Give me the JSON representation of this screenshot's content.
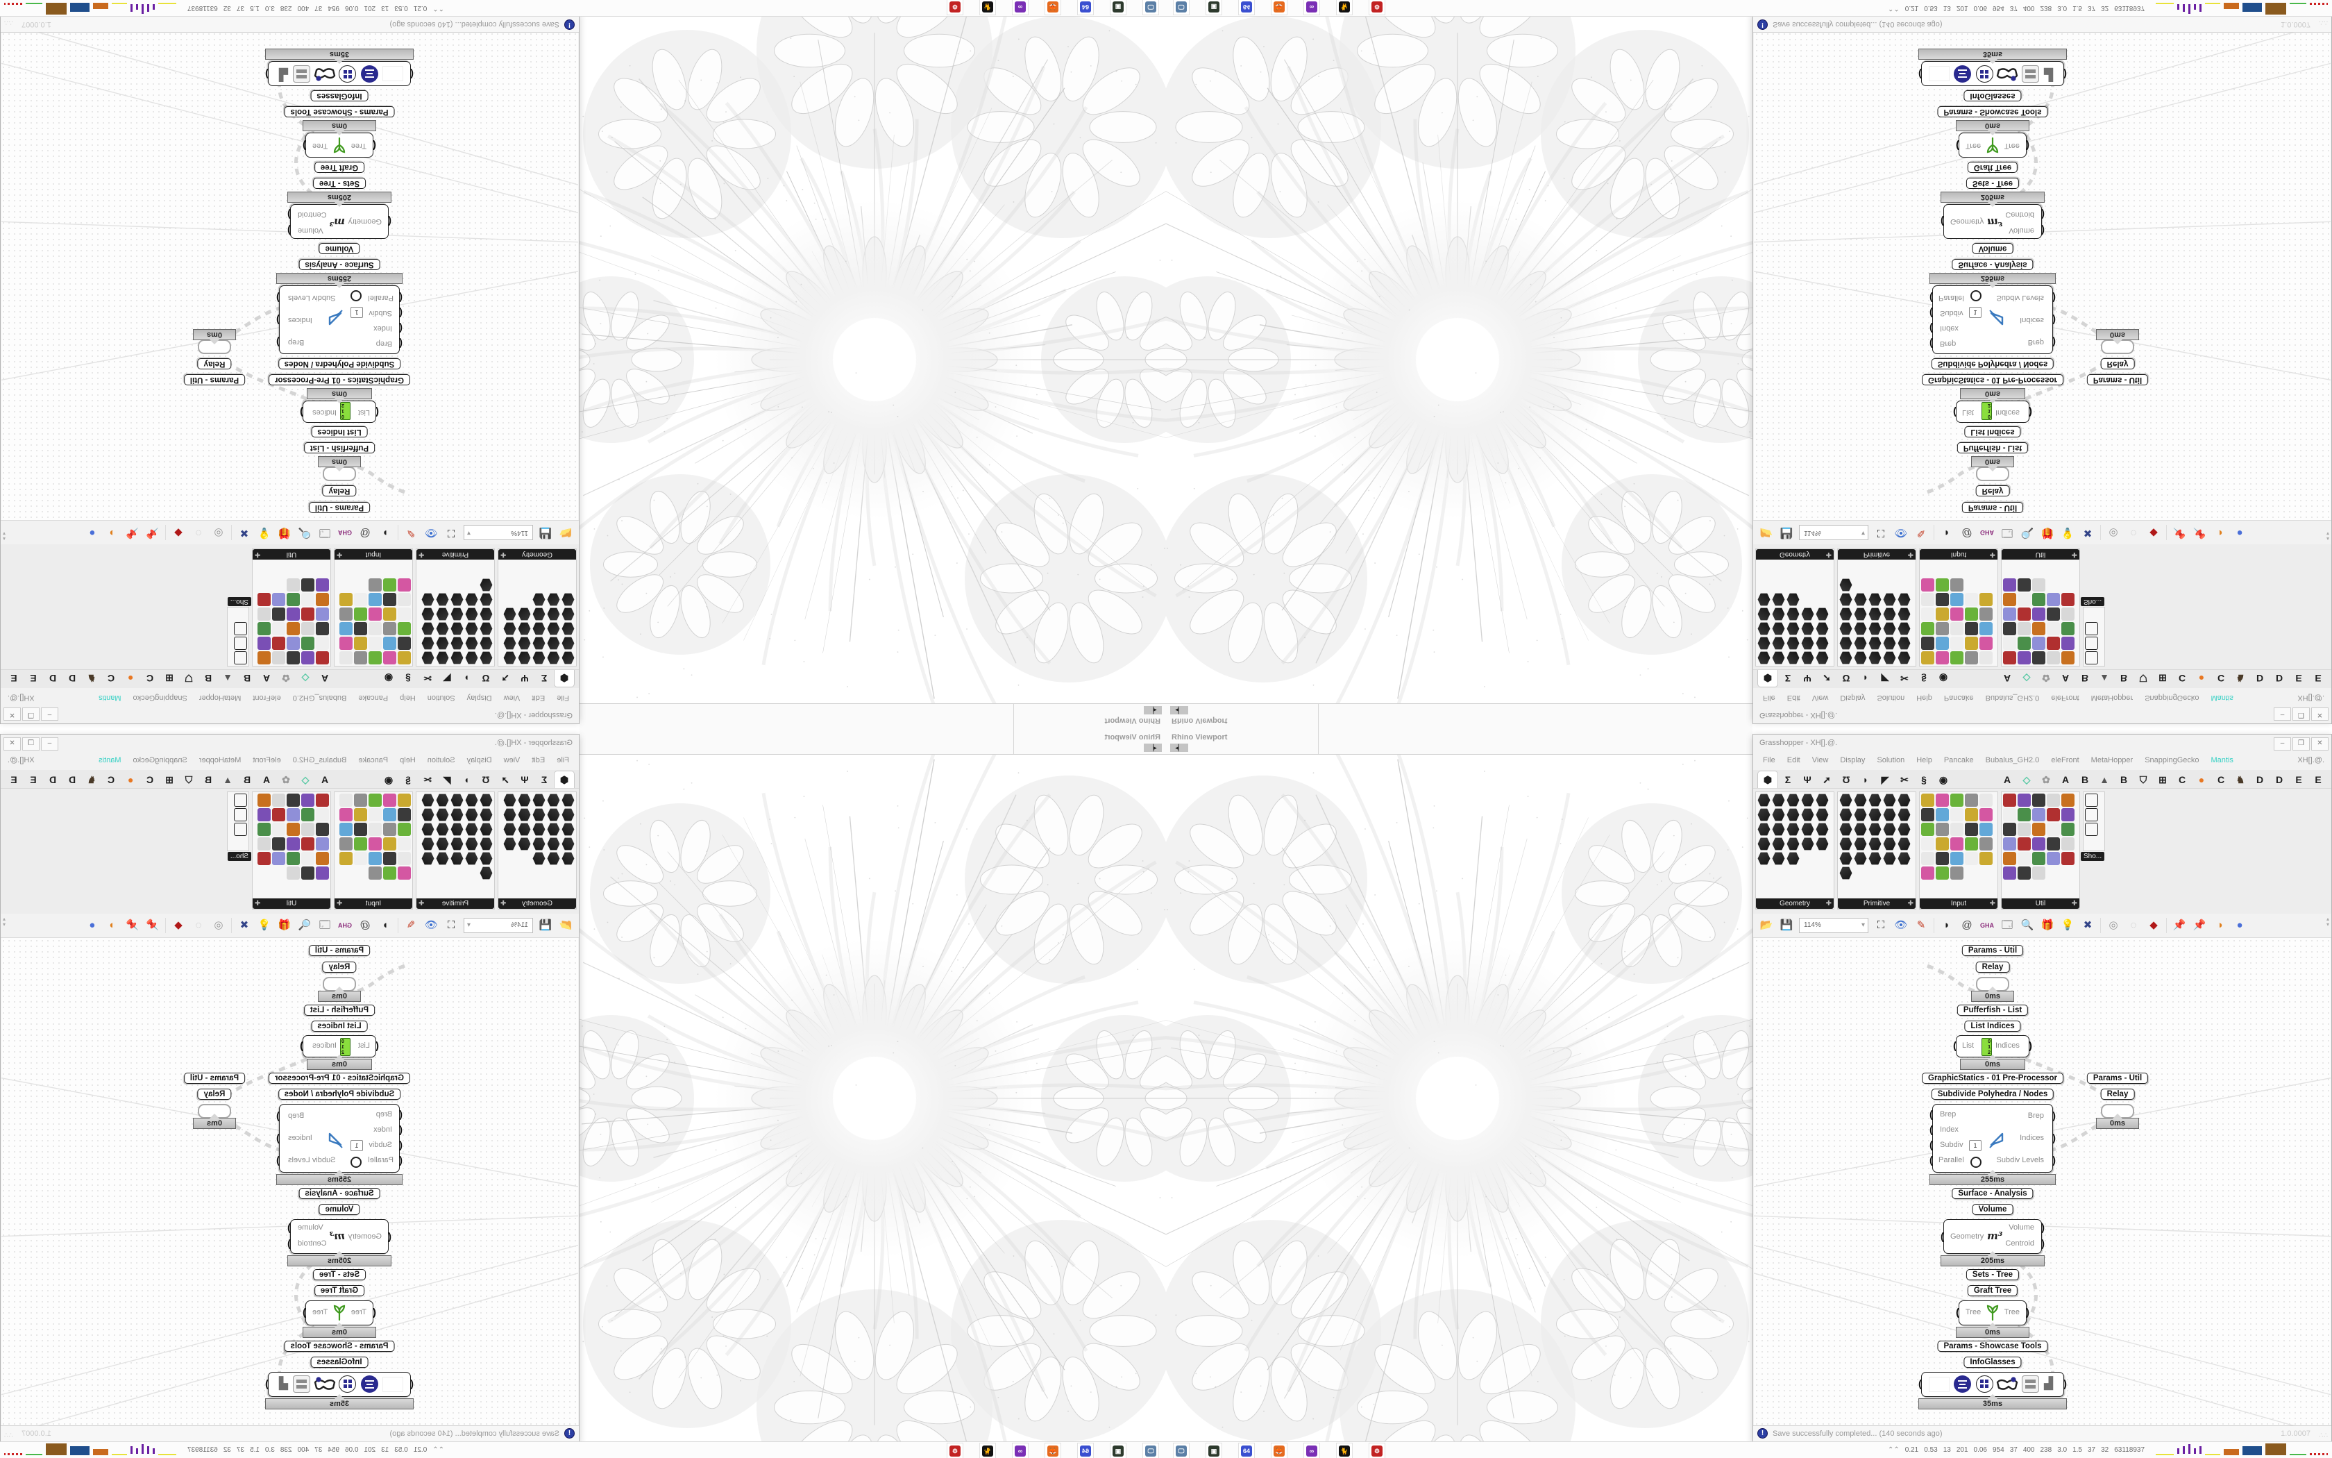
{
  "viewport": {
    "tab_label": "Rhino Viewport",
    "nav_glyph": "◂▏"
  },
  "gh_window": {
    "title": "Grasshopper - XH[].@.",
    "window_controls": {
      "minimize": "–",
      "maximize": "❒",
      "close": "✕"
    },
    "menu": [
      "File",
      "Edit",
      "View",
      "Display",
      "Solution",
      "Help",
      "Pancake",
      "Bubalus_GH2.0",
      "eleFront",
      "MetaHopper",
      "SnappingGecko",
      "Mantis"
    ],
    "menu_highlight": "Mantis",
    "menu_highlight_color": "#35d0c4",
    "menu_right": "XH[].@.",
    "tabs": [
      {
        "glyph": "⬢",
        "name": "tab-params",
        "selected": true
      },
      {
        "glyph": "Σ",
        "name": "tab-maths"
      },
      {
        "glyph": "Ψ",
        "name": "tab-sets"
      },
      {
        "glyph": "➚",
        "name": "tab-vector"
      },
      {
        "glyph": "Ʊ",
        "name": "tab-curve"
      },
      {
        "glyph": "◗",
        "name": "tab-surface"
      },
      {
        "glyph": "◤",
        "name": "tab-mesh"
      },
      {
        "glyph": "✂",
        "name": "tab-intersect"
      },
      {
        "glyph": "§",
        "name": "tab-transform"
      },
      {
        "glyph": "◉",
        "name": "tab-display"
      },
      {
        "glyph": "",
        "name": "tab-gap",
        "gap": true
      },
      {
        "glyph": "A",
        "name": "tab-plugin-a1"
      },
      {
        "glyph": "◇",
        "name": "tab-plugin-kite",
        "color": "#59c9a5"
      },
      {
        "glyph": "✿",
        "name": "tab-plugin-flower",
        "color": "#9a9a9a"
      },
      {
        "glyph": "A",
        "name": "tab-plugin-a2"
      },
      {
        "glyph": "B",
        "name": "tab-plugin-b1"
      },
      {
        "glyph": "▲",
        "name": "tab-plugin-mountain",
        "color": "#555"
      },
      {
        "glyph": "B",
        "name": "tab-plugin-b2"
      },
      {
        "glyph": "⛉",
        "name": "tab-plugin-shield"
      },
      {
        "glyph": "⊞",
        "name": "tab-plugin-waffle"
      },
      {
        "glyph": "C",
        "name": "tab-plugin-c1"
      },
      {
        "glyph": "●",
        "name": "tab-plugin-dot",
        "color": "#e87722"
      },
      {
        "glyph": "C",
        "name": "tab-plugin-c2"
      },
      {
        "glyph": "♞",
        "name": "tab-plugin-bird",
        "color": "#4a3a28"
      },
      {
        "glyph": "D",
        "name": "tab-plugin-d1"
      },
      {
        "glyph": "D",
        "name": "tab-plugin-d2"
      },
      {
        "glyph": "E",
        "name": "tab-plugin-e1"
      },
      {
        "glyph": "E",
        "name": "tab-plugin-e2"
      },
      {
        "glyph": "▦",
        "name": "tab-plugin-grid"
      }
    ],
    "palettes": [
      {
        "name": "Geometry",
        "style": "hex",
        "cols": 4,
        "count": 23
      },
      {
        "name": "Primitive",
        "style": "hex",
        "cols": 5,
        "count": 26
      },
      {
        "name": "Input",
        "style": "mixed",
        "cols": 5,
        "count": 28
      },
      {
        "name": "Util",
        "style": "mixed2",
        "cols": 5,
        "count": 28
      },
      {
        "name": "Sho...",
        "style": "narrow",
        "cols": 1,
        "count": 3
      }
    ],
    "toolbar": {
      "zoom_value": "114%",
      "icons": [
        {
          "name": "open-file-icon",
          "glyph": "📂",
          "color": "#6fae3f"
        },
        {
          "name": "save-file-icon",
          "glyph": "💾",
          "color": "#3a5fd0"
        },
        {
          "name": "zoom-extents-icon",
          "glyph": "⛶",
          "color": "#111"
        },
        {
          "name": "preview-eye-icon",
          "glyph": "👁",
          "color": "#3a6fd0"
        },
        {
          "name": "sketch-pen-icon",
          "glyph": "✎",
          "color": "#c23b22"
        },
        {
          "name": "widget-speaker-icon",
          "glyph": "◗",
          "color": "#222"
        },
        {
          "name": "at-sign-icon",
          "glyph": "@",
          "color": "#444"
        },
        {
          "name": "gha-badge-icon",
          "glyph": "GHA",
          "color": "#8a2a7a"
        },
        {
          "name": "window-plant-icon",
          "glyph": "🗔",
          "color": "#444"
        },
        {
          "name": "s-magnifier-icon",
          "glyph": "🔍",
          "color": "#2a4fd0"
        },
        {
          "name": "help-package-icon",
          "glyph": "🎁",
          "color": "#e4568e"
        },
        {
          "name": "lightbulb-icon",
          "glyph": "💡",
          "color": "#8f7ad8"
        },
        {
          "name": "galapagos-icon",
          "glyph": "✖",
          "color": "#334488"
        },
        {
          "name": "gumball-gray-icon",
          "glyph": "◎",
          "color": "#9a9a9a"
        },
        {
          "name": "rings-icon",
          "glyph": "◌",
          "color": "#bbb"
        },
        {
          "name": "gem-red-icon",
          "glyph": "◆",
          "color": "#b01818"
        },
        {
          "name": "pin-teal-icon",
          "glyph": "📌",
          "color": "#2a8f8f"
        },
        {
          "name": "pin-green-icon",
          "glyph": "📌",
          "color": "#52a83a"
        },
        {
          "name": "pin-orange-icon",
          "glyph": "◑",
          "color": "#e0801e"
        },
        {
          "name": "ball-blue-icon",
          "glyph": "●",
          "color": "#4a6fd8"
        }
      ]
    },
    "statusbar": {
      "message": "Save successfully completed... (140 seconds ago)",
      "version": "1.0.0007"
    }
  },
  "canvas": {
    "group1_label": "Params - Util",
    "relay_label": "Relay",
    "relay_timer": "0ms",
    "pufferfish_label": "Pufferfish - List",
    "listindices_label": "List Indices",
    "li_port_in": "List",
    "li_port_out": "Indices",
    "li_values": [
      "0",
      "1",
      "2"
    ],
    "li_timer": "0ms",
    "graphicstatics_label": "GraphicStatics - 01 Pre-Processor",
    "subdivide_label": "Subdivide Polyhedra / Nodes",
    "sub_in_0": "Brep",
    "sub_in_1": "Index",
    "sub_in_2": "Subdiv",
    "sub_in_3": "Parallel",
    "sub_value": "1",
    "sub_out_0": "Brep",
    "sub_out_1": "Indices",
    "sub_out_2": "Subdiv Levels",
    "sub_timer": "255ms",
    "surface_label": "Surface - Analysis",
    "volume_label": "Volume",
    "vol_in": "Geometry",
    "vol_glyph": "m³",
    "vol_out_0": "Volume",
    "vol_out_1": "Centroid",
    "vol_timer": "205ms",
    "sets_label": "Sets - Tree",
    "graft_label": "Graft Tree",
    "graft_in": "Tree",
    "graft_out": "Tree",
    "graft_timer": "0ms",
    "showcase_label": "Params - Showcase Tools",
    "infoglasses_label": "InfoGlasses",
    "ig_timer": "35ms",
    "side_group_label": "Params - Util",
    "side_relay_label": "Relay",
    "side_timer": "0ms"
  },
  "taskbar": {
    "icons": [
      {
        "name": "app-monitor-camera-icon",
        "bg": "#5b7fa6",
        "glyph": "🖵"
      },
      {
        "name": "app-console-green-icon",
        "bg": "#2d3a2d",
        "glyph": "▣"
      },
      {
        "name": "app-floppy-64-icon",
        "bg": "#3a4fd0",
        "glyph": "64"
      },
      {
        "name": "app-firefox-icon",
        "bg": "#e66a1e",
        "glyph": "🦊"
      },
      {
        "name": "app-mask-purple-icon",
        "bg": "#7a2fb5",
        "glyph": "∞"
      },
      {
        "name": "app-cat-icon",
        "bg": "#111",
        "glyph": "🐈"
      },
      {
        "name": "app-gear-red-icon",
        "bg": "#c22222",
        "glyph": "⚙"
      }
    ],
    "stats": [
      "0.21",
      "0.53",
      "13",
      "201",
      "0.06",
      "954",
      "37",
      "400",
      "238",
      "3.0",
      "1.5",
      "37",
      "32",
      "63118937"
    ],
    "chart_colors": {
      "hist": "#6a1fa2",
      "orange": "#c96a1e",
      "blue": "#1f4e8c",
      "brown": "#8a5a1e",
      "green": "#49b84a",
      "red": "#cc2222",
      "yellow": "#e8e23a"
    }
  }
}
